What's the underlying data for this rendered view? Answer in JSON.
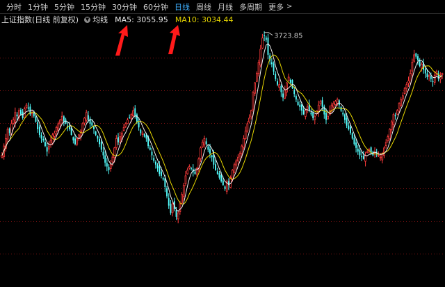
{
  "tabs": [
    {
      "label": "分时",
      "active": false
    },
    {
      "label": "1分钟",
      "active": false
    },
    {
      "label": "5分钟",
      "active": false
    },
    {
      "label": "15分钟",
      "active": false
    },
    {
      "label": "30分钟",
      "active": false
    },
    {
      "label": "60分钟",
      "active": false
    },
    {
      "label": "日线",
      "active": true
    },
    {
      "label": "周线",
      "active": false
    },
    {
      "label": "月线",
      "active": false
    },
    {
      "label": "多周期",
      "active": false
    },
    {
      "label": "更多",
      "active": false
    }
  ],
  "more_arrow": ">",
  "info": {
    "index_name": "上证指数",
    "mode": "(日线 前复权)",
    "ma_toggle_icon": "chevron-down-icon",
    "ma_label": "均线",
    "ma5": "MA5: 3055.95",
    "ma10": "MA10: 3034.44"
  },
  "annotations": {
    "arrow_color": "#ff1a1a",
    "arrow_targets": [
      "MA5",
      "MA10"
    ]
  },
  "colors": {
    "up": "#ff3b3b",
    "down": "#54ffff",
    "ma5": "#f2f2f2",
    "ma10": "#e8d800",
    "grid": "#8a1414",
    "active_tab": "#3fb0ff"
  },
  "chart_data": {
    "type": "candlestick",
    "high_label": "3723.85",
    "ylim": [
      2640,
      3760
    ],
    "closes": [
      3060,
      3110,
      3150,
      3200,
      3180,
      3230,
      3250,
      3290,
      3270,
      3300,
      3280,
      3260,
      3310,
      3330,
      3310,
      3280,
      3290,
      3270,
      3240,
      3200,
      3170,
      3150,
      3140,
      3110,
      3080,
      3110,
      3140,
      3170,
      3180,
      3210,
      3230,
      3250,
      3270,
      3240,
      3230,
      3210,
      3200,
      3170,
      3140,
      3120,
      3150,
      3170,
      3190,
      3230,
      3260,
      3290,
      3250,
      3230,
      3220,
      3200,
      3170,
      3150,
      3120,
      3090,
      3060,
      3020,
      3000,
      2980,
      3010,
      3050,
      3100,
      3150,
      3130,
      3160,
      3180,
      3210,
      3230,
      3250,
      3260,
      3280,
      3300,
      3270,
      3240,
      3210,
      3180,
      3180,
      3160,
      3150,
      3110,
      3090,
      3060,
      3030,
      3010,
      2990,
      2960,
      2950,
      2930,
      2890,
      2840,
      2790,
      2750,
      2800,
      2770,
      2730,
      2750,
      2800,
      2850,
      2900,
      2950,
      2980,
      3000,
      2990,
      2970,
      2960,
      2990,
      3040,
      3100,
      3130,
      3150,
      3120,
      3090,
      3070,
      3050,
      3010,
      2980,
      2960,
      2940,
      2920,
      2900,
      2880,
      2920,
      2900,
      2940,
      2980,
      3010,
      3030,
      3050,
      3070,
      3110,
      3150,
      3190,
      3230,
      3260,
      3300,
      3400,
      3450,
      3500,
      3560,
      3630,
      3690,
      3700,
      3680,
      3600,
      3570,
      3550,
      3510,
      3470,
      3440,
      3440,
      3400,
      3370,
      3410,
      3450,
      3480,
      3450,
      3420,
      3390,
      3360,
      3330,
      3320,
      3300,
      3280,
      3300,
      3320,
      3300,
      3280,
      3260,
      3270,
      3300,
      3330,
      3350,
      3320,
      3280,
      3250,
      3270,
      3300,
      3330,
      3340,
      3350,
      3360,
      3330,
      3300,
      3280,
      3250,
      3220,
      3200,
      3180,
      3150,
      3120,
      3100,
      3080,
      3060,
      3050,
      3040,
      3060,
      3080,
      3090,
      3070,
      3060,
      3080,
      3070,
      3060,
      3050,
      3070,
      3100,
      3130,
      3160,
      3200,
      3240,
      3280,
      3270,
      3300,
      3340,
      3360,
      3380,
      3420,
      3440,
      3460,
      3500,
      3560,
      3600,
      3590,
      3570,
      3540,
      3550,
      3520,
      3500,
      3480,
      3490,
      3470,
      3455,
      3490,
      3510,
      3470,
      3480,
      3500
    ]
  }
}
